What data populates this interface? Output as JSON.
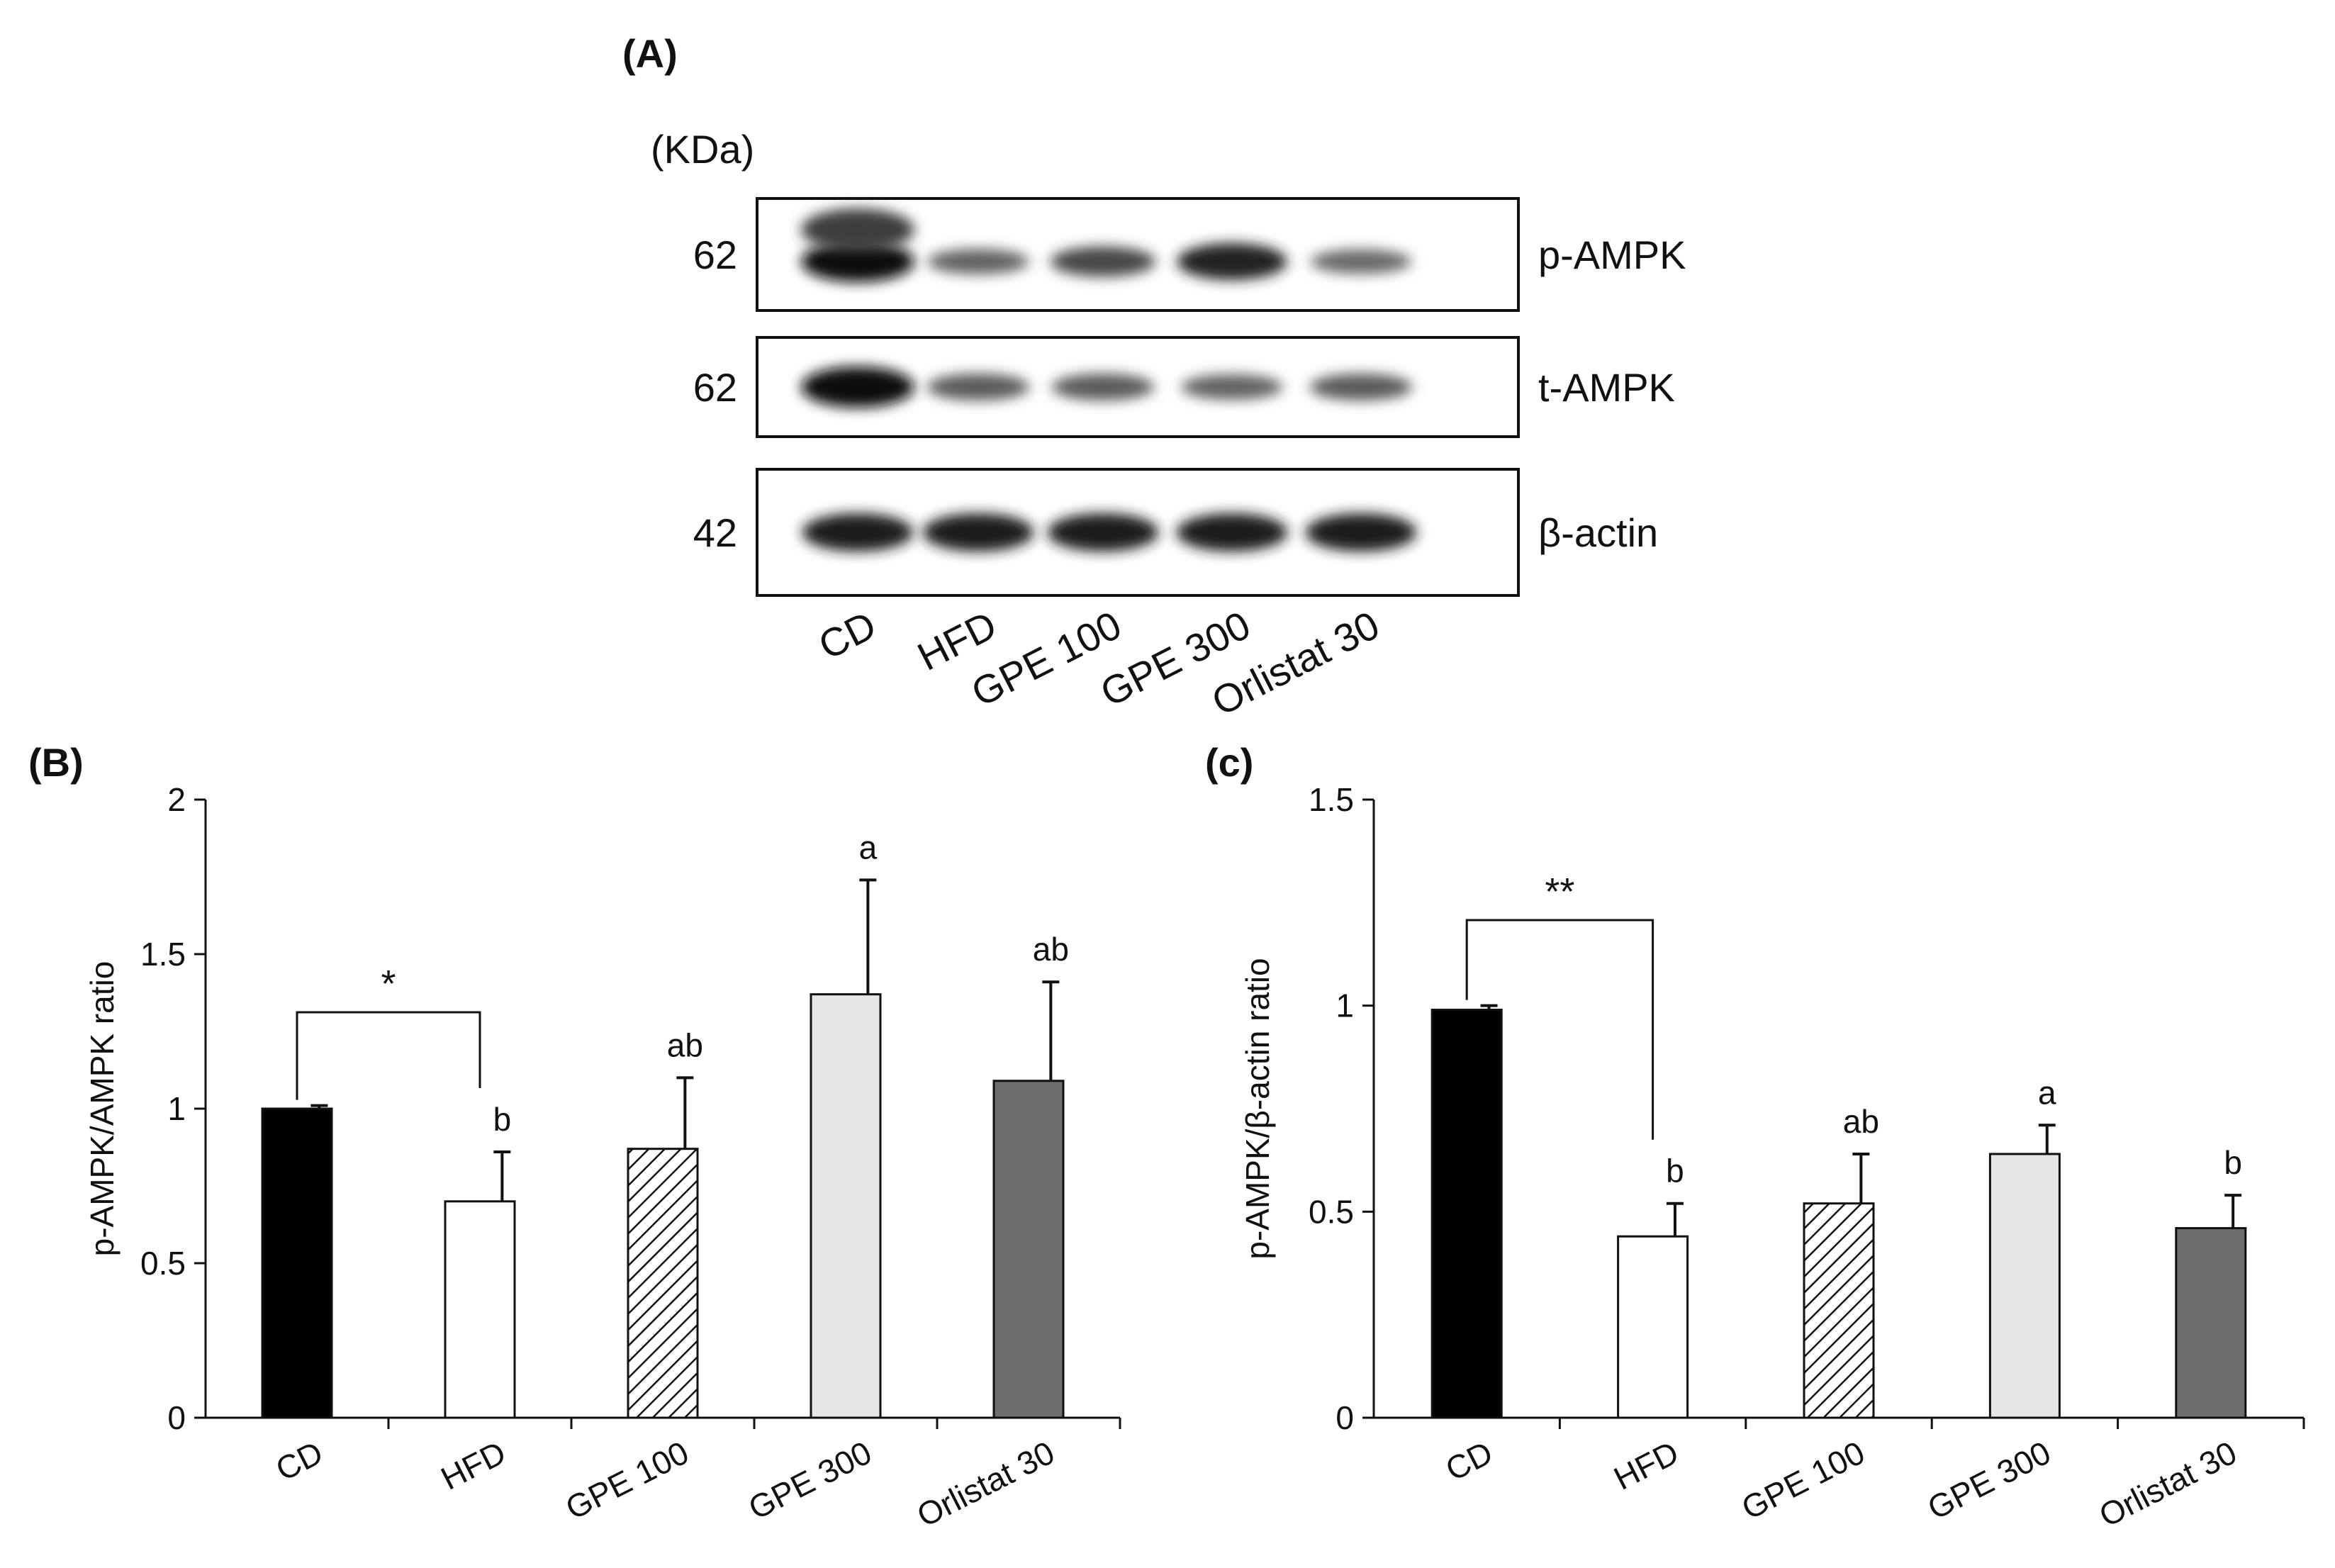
{
  "figure": {
    "panel_a_label": "(A)",
    "panel_b_label": "(B)",
    "panel_c_label": "(c)"
  },
  "western_blot": {
    "kda_label": "(KDa)",
    "rows": [
      {
        "protein": "p-AMPK",
        "kda": "62",
        "intensities": [
          1.0,
          0.45,
          0.62,
          0.85,
          0.42
        ]
      },
      {
        "protein": "t-AMPK",
        "kda": "62",
        "intensities": [
          1.0,
          0.5,
          0.5,
          0.45,
          0.5
        ]
      },
      {
        "protein": "β-actin",
        "kda": "42",
        "intensities": [
          0.9,
          0.9,
          0.9,
          0.9,
          0.9
        ]
      }
    ],
    "lanes": [
      "CD",
      "HFD",
      "GPE 100",
      "GPE 300",
      "Orlistat 30"
    ]
  },
  "colors": {
    "CD": "#000000",
    "HFD": "#ffffff",
    "GPE 100": "hatched",
    "GPE 300": "#e6e6e6",
    "Orlistat 30": "#6e6e6e"
  },
  "chart_data": [
    {
      "type": "bar",
      "title": "",
      "xlabel": "",
      "ylabel": "p-AMPK/AMPK ratio",
      "ylim": [
        0,
        2
      ],
      "yticks": [
        0,
        0.5,
        1,
        1.5,
        2
      ],
      "ytick_labels": [
        "0",
        "0.5",
        "1",
        "1.5",
        "2"
      ],
      "categories": [
        "CD",
        "HFD",
        "GPE 100",
        "GPE 300",
        "Orlistat 30"
      ],
      "values": [
        1.0,
        0.7,
        0.87,
        1.37,
        1.09
      ],
      "errors": [
        0.01,
        0.16,
        0.23,
        0.37,
        0.32
      ],
      "letters": [
        "",
        "b",
        "ab",
        "a",
        "ab"
      ],
      "significance": {
        "from": 0,
        "to": 1,
        "label": "*"
      }
    },
    {
      "type": "bar",
      "title": "",
      "xlabel": "",
      "ylabel": "p-AMPK/β-actin ratio",
      "ylim": [
        0,
        1.5
      ],
      "yticks": [
        0,
        0.5,
        1,
        1.5
      ],
      "ytick_labels": [
        "0",
        "0.5",
        "1",
        "1.5"
      ],
      "categories": [
        "CD",
        "HFD",
        "GPE 100",
        "GPE 300",
        "Orlistat 30"
      ],
      "values": [
        0.99,
        0.44,
        0.52,
        0.64,
        0.46
      ],
      "errors": [
        0.01,
        0.08,
        0.12,
        0.07,
        0.08
      ],
      "letters": [
        "",
        "b",
        "ab",
        "a",
        "b"
      ],
      "significance": {
        "from": 0,
        "to": 1,
        "label": "**"
      }
    }
  ]
}
